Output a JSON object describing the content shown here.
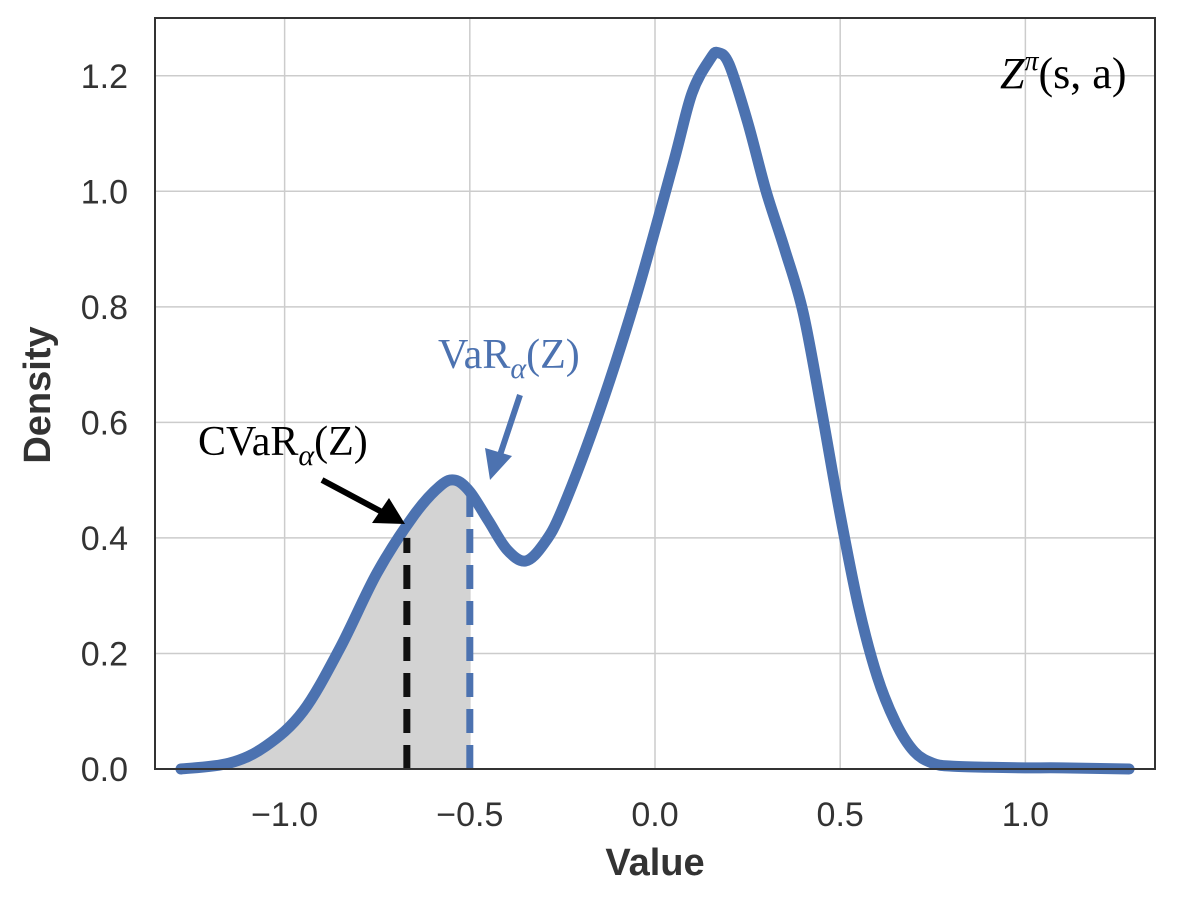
{
  "chart_data": {
    "type": "line",
    "xlabel": "Value",
    "ylabel": "Density",
    "xlim": [
      -1.35,
      1.35
    ],
    "ylim": [
      0.0,
      1.3
    ],
    "x_ticks": [
      -1.0,
      -0.5,
      0.0,
      0.5,
      1.0
    ],
    "x_tick_labels": [
      "−1.0",
      "−0.5",
      "0.0",
      "0.5",
      "1.0"
    ],
    "y_ticks": [
      0.0,
      0.2,
      0.4,
      0.6,
      0.8,
      1.0,
      1.2
    ],
    "y_tick_labels": [
      "0.0",
      "0.2",
      "0.4",
      "0.6",
      "0.8",
      "1.0",
      "1.2"
    ],
    "grid": true,
    "series": [
      {
        "x": [
          -1.28,
          -1.15,
          -1.05,
          -0.95,
          -0.85,
          -0.75,
          -0.65,
          -0.58,
          -0.54,
          -0.5,
          -0.45,
          -0.4,
          -0.35,
          -0.3,
          -0.25,
          -0.15,
          -0.05,
          0.05,
          0.1,
          0.15,
          0.17,
          0.2,
          0.25,
          0.3,
          0.35,
          0.4,
          0.45,
          0.5,
          0.55,
          0.6,
          0.65,
          0.7,
          0.75,
          0.8,
          0.9,
          1.0,
          1.1,
          1.28
        ],
        "y": [
          0.0,
          0.01,
          0.04,
          0.1,
          0.21,
          0.34,
          0.44,
          0.49,
          0.5,
          0.48,
          0.43,
          0.38,
          0.36,
          0.39,
          0.45,
          0.62,
          0.82,
          1.05,
          1.17,
          1.23,
          1.24,
          1.22,
          1.12,
          1.0,
          0.9,
          0.79,
          0.62,
          0.44,
          0.28,
          0.16,
          0.08,
          0.03,
          0.01,
          0.005,
          0.003,
          0.002,
          0.002,
          0.0
        ],
        "color": "#4c72b0"
      }
    ],
    "shaded_region": {
      "x_max": -0.5,
      "color": "#d3d3d3"
    },
    "vlines": [
      {
        "x": -0.67,
        "y_top": 0.4,
        "color": "#111111"
      },
      {
        "x": -0.5,
        "y_top": 0.48,
        "color": "#4c72b0"
      }
    ],
    "annotations": {
      "cvar": {
        "base": "CVaR",
        "sub": "α",
        "rest": "(Z)",
        "color": "#000000"
      },
      "var": {
        "base": "VaR",
        "sub": "α",
        "rest": "(Z)",
        "color": "#4c72b0"
      },
      "dist": {
        "base": "Z",
        "sup": "π",
        "rest": "(s, a)"
      }
    }
  }
}
